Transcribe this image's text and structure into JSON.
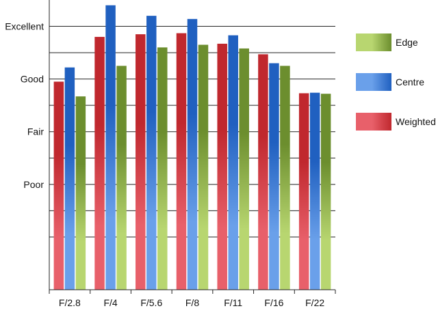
{
  "chart_data": {
    "type": "bar",
    "categories": [
      "F/2.8",
      "F/4",
      "F/5.6",
      "F/8",
      "F/11",
      "F/16",
      "F/22"
    ],
    "ytick_labels": [
      {
        "label": "Poor",
        "value": 1
      },
      {
        "label": "Fair",
        "value": 2
      },
      {
        "label": "Good",
        "value": 3
      },
      {
        "label": "Excellent",
        "value": 4
      }
    ],
    "ylim": [
      -1,
      4.5
    ],
    "grid": true,
    "legend_position": "right",
    "series": [
      {
        "name": "Weighted",
        "color": "#c0282e",
        "color_light": "#e8606a",
        "values": [
          2.95,
          3.8,
          3.85,
          3.87,
          3.67,
          3.47,
          2.73
        ]
      },
      {
        "name": "Centre",
        "color": "#2060c0",
        "color_light": "#6aa0ea",
        "values": [
          3.22,
          4.4,
          4.2,
          4.14,
          3.83,
          3.3,
          2.74
        ]
      },
      {
        "name": "Edge",
        "color": "#6c8e2e",
        "color_light": "#b8d670",
        "values": [
          2.67,
          3.25,
          3.6,
          3.65,
          3.58,
          3.25,
          2.72
        ]
      }
    ],
    "legend_order": [
      "Edge",
      "Centre",
      "Weighted"
    ]
  }
}
